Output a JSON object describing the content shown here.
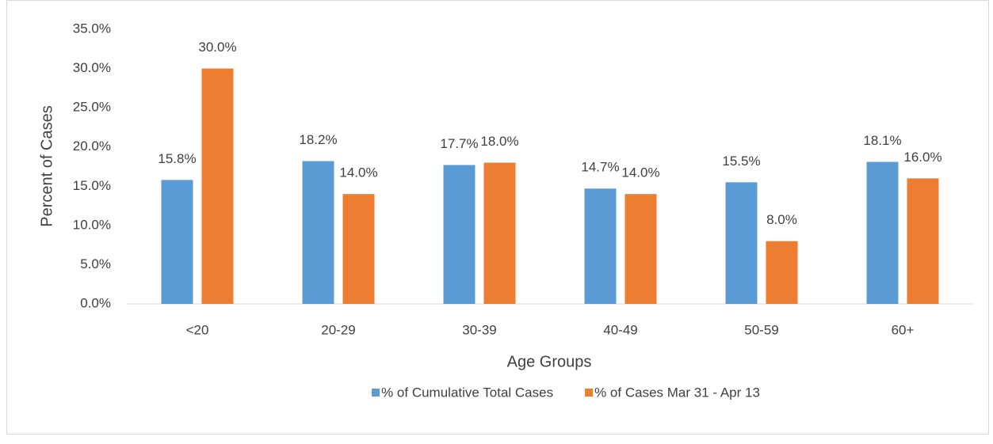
{
  "chart_data": {
    "type": "bar",
    "categories": [
      "<20",
      "20-29",
      "30-39",
      "40-49",
      "50-59",
      "60+"
    ],
    "series": [
      {
        "name": "% of Cumulative Total Cases",
        "color": "#5b9bd5",
        "values": [
          15.8,
          18.2,
          17.7,
          14.7,
          15.5,
          18.1
        ],
        "value_labels": [
          "15.8%",
          "18.2%",
          "17.7%",
          "14.7%",
          "15.5%",
          "18.1%"
        ]
      },
      {
        "name": "% of Cases Mar 31 - Apr 13",
        "color": "#ed7d31",
        "values": [
          30.0,
          14.0,
          18.0,
          14.0,
          8.0,
          16.0
        ],
        "value_labels": [
          "30.0%",
          "14.0%",
          "18.0%",
          "14.0%",
          "8.0%",
          "16.0%"
        ]
      }
    ],
    "x_label": "Age Groups",
    "y_label": "Percent of Cases",
    "ylim": [
      0,
      35
    ],
    "yticks": [
      {
        "value": 0,
        "label": "0.0%"
      },
      {
        "value": 5,
        "label": "5.0%"
      },
      {
        "value": 10,
        "label": "10.0%"
      },
      {
        "value": 15,
        "label": "15.0%"
      },
      {
        "value": 20,
        "label": "20.0%"
      },
      {
        "value": 25,
        "label": "25.0%"
      },
      {
        "value": 30,
        "label": "30.0%"
      },
      {
        "value": 35,
        "label": "35.0%"
      }
    ],
    "legend": "bottom"
  }
}
